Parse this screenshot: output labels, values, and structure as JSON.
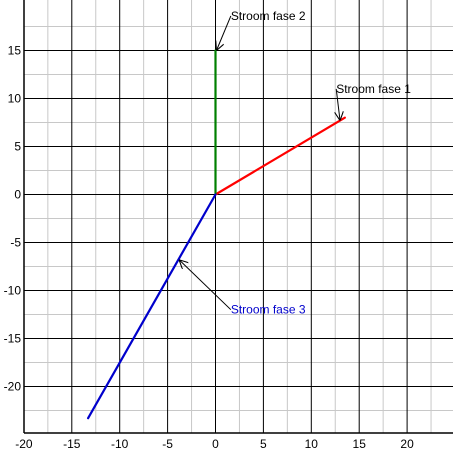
{
  "chart_data": {
    "type": "line",
    "title": "",
    "xlabel": "",
    "ylabel": "",
    "xlim": [
      -20,
      25
    ],
    "ylim": [
      -24.5,
      19
    ],
    "grid": true,
    "minor_grid": true,
    "x_ticks": [
      -20,
      -15,
      -10,
      -5,
      0,
      5,
      10,
      15,
      20
    ],
    "y_ticks": [
      15,
      10,
      5,
      0,
      -5,
      -10,
      -15,
      -20
    ],
    "series": [
      {
        "name": "Stroom fase 1",
        "color": "#ff0000",
        "x": [
          0,
          13.5
        ],
        "y": [
          0,
          8
        ]
      },
      {
        "name": "Stroom fase 2",
        "color": "#008000",
        "x": [
          0,
          0
        ],
        "y": [
          0,
          15
        ]
      },
      {
        "name": "Stroom fase 3",
        "color": "#0000cc",
        "x": [
          0,
          -13.3
        ],
        "y": [
          0,
          -23.3
        ]
      }
    ],
    "annotations": [
      {
        "text": "Stroom fase 2",
        "text_color": "#000000",
        "point": [
          0.1,
          15
        ],
        "label_at": [
          5.5,
          18.6
        ]
      },
      {
        "text": "Stroom fase 1",
        "text_color": "#000000",
        "point": [
          13,
          7.7
        ],
        "label_at": [
          16.5,
          11
        ]
      },
      {
        "text": "Stroom fase 3",
        "text_color": "#0000cc",
        "point": [
          -3.8,
          -6.8
        ],
        "label_at": [
          5.5,
          -12
        ]
      }
    ]
  }
}
